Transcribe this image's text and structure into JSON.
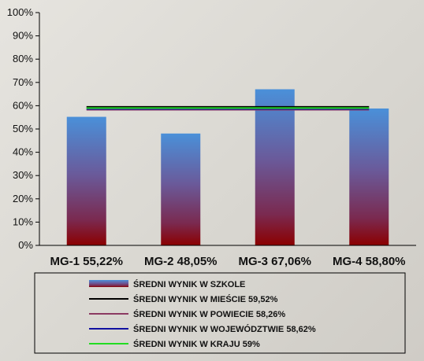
{
  "chart_data": {
    "type": "bar",
    "categories": [
      "MG-1 55,22%",
      "MG-2 48,05%",
      "MG-3 67,06%",
      "MG-4 58,80%"
    ],
    "values": [
      55.22,
      48.05,
      67.06,
      58.8
    ],
    "ylim": [
      0,
      100
    ],
    "yticks": [
      "0%",
      "10%",
      "20%",
      "30%",
      "40%",
      "50%",
      "60%",
      "70%",
      "80%",
      "90%",
      "100%"
    ],
    "grid": false,
    "legend_position": "bottom",
    "series": [
      {
        "name": "ŚREDNI WYNIK W SZKOLE",
        "kind": "bar"
      },
      {
        "name": "ŚREDNI WYNIK W MIEŚCIE 59,52%",
        "kind": "line",
        "value": 59.52,
        "color": "#000000"
      },
      {
        "name": "ŚREDNI WYNIK W POWIECIE 58,26%",
        "kind": "line",
        "value": 58.26,
        "color": "#8b3a62"
      },
      {
        "name": "ŚREDNI WYNIK W WOJEWÓDZTWIE 58,62%",
        "kind": "line",
        "value": 58.62,
        "color": "#1010a0"
      },
      {
        "name": "ŚREDNI WYNIK W KRAJU 59%",
        "kind": "line",
        "value": 59,
        "color": "#22dd22"
      }
    ],
    "colors": {
      "bar_top": "#4a90d9",
      "bar_mid": "#7a3a6a",
      "bar_bottom": "#8b0000",
      "axis": "#000000"
    }
  }
}
